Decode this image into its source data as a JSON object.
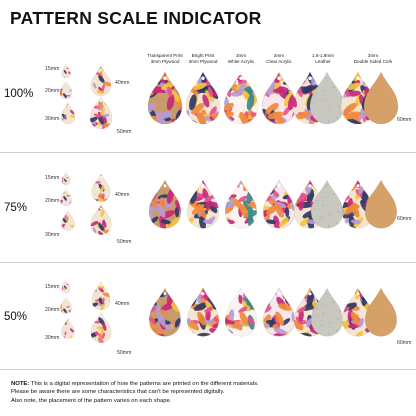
{
  "title": "PATTERN SCALE INDICATOR",
  "materials": [
    {
      "line1": "Transparent Print",
      "line2": "3mm Plywood"
    },
    {
      "line1": "Bright Print",
      "line2": "3mm Plywood"
    },
    {
      "line1": "3mm",
      "line2": "White Acrylic"
    },
    {
      "line1": "3mm",
      "line2": "Clear Acrylic"
    },
    {
      "line1": "1.6-1.8mm",
      "line2": "Leather"
    },
    {
      "line1": "3mm",
      "line2": "Double Sided Cork"
    }
  ],
  "rows": [
    {
      "percent": "100%",
      "size_labels": {
        "s15": "15mm",
        "s20": "20mm",
        "s30": "30mm",
        "s40": "40mm",
        "s50": "50mm",
        "s60": "60mm"
      }
    },
    {
      "percent": "75%",
      "size_labels": {
        "s15": "15mm",
        "s20": "20mm",
        "s30": "30mm",
        "s40": "40mm",
        "s50": "50mm",
        "s60": "60mm"
      }
    },
    {
      "percent": "50%",
      "size_labels": {
        "s15": "15mm",
        "s20": "20mm",
        "s30": "30mm",
        "s40": "40mm",
        "s50": "50mm",
        "s60": "60mm"
      }
    }
  ],
  "note": {
    "label": "NOTE:",
    "line1": " This is a digital representation of how the patterns are printed on the different materials.",
    "line2": "Please be aware there are some characteristics that can't be represented digitally.",
    "line3": "Also note, the placement of the pattern varies on each shape."
  },
  "colors": {
    "pink": "#e8508f",
    "magenta": "#c8287a",
    "orange": "#f08a3c",
    "yellow": "#f6c43a",
    "lavender": "#b79ad8",
    "navy": "#2c3a66",
    "teal": "#3a8a8a",
    "cream": "#f4e4d2",
    "wood": "#c99a6a",
    "cork": "#d6a069",
    "leather": "#c8c8c0"
  }
}
